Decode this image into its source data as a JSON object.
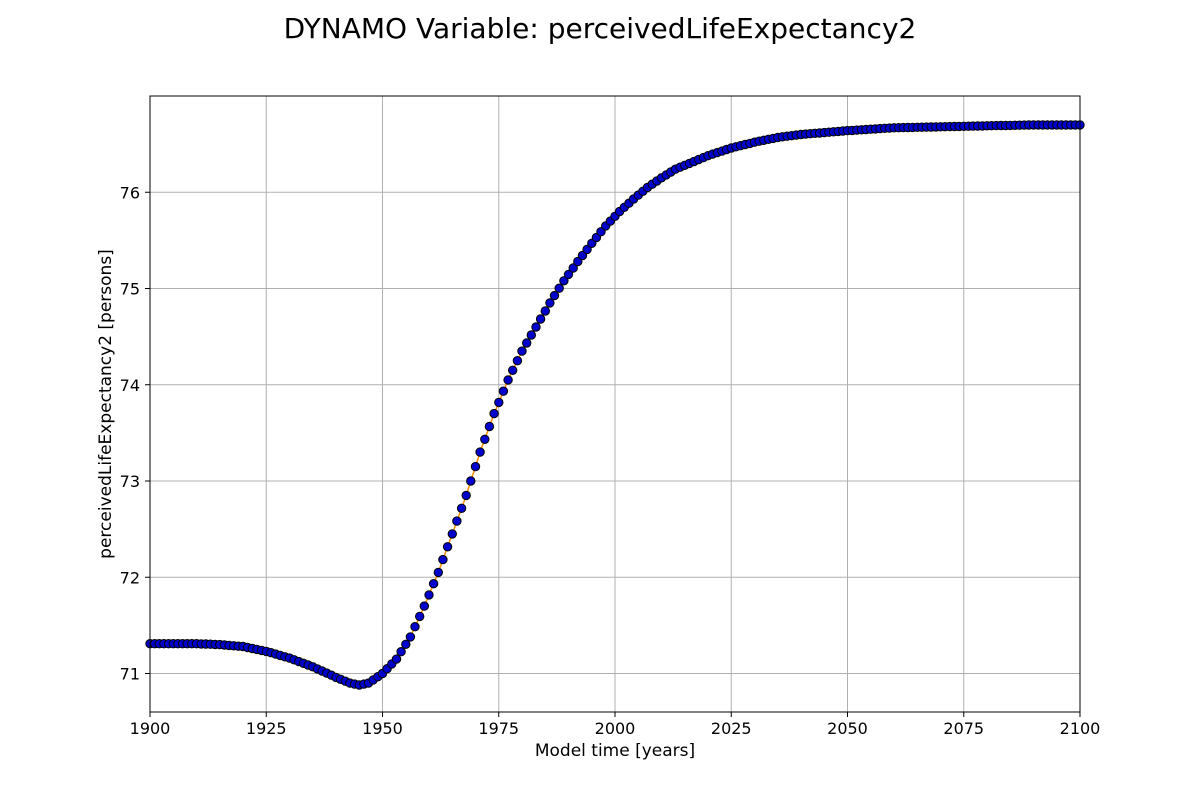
{
  "chart_data": {
    "type": "scatter",
    "title": "DYNAMO Variable: perceivedLifeExpectancy2",
    "xlabel": "Model time [years]",
    "ylabel": "perceivedLifeExpectancy2 [persons]",
    "xlim": [
      1900,
      2100
    ],
    "ylim": [
      70.6,
      77.0
    ],
    "x_ticks": [
      1900,
      1925,
      1950,
      1975,
      2000,
      2025,
      2050,
      2075,
      2100
    ],
    "y_ticks": [
      71,
      72,
      73,
      74,
      75,
      76
    ],
    "grid": true,
    "marker_color": "#0000cc",
    "marker_edge_color": "#000000",
    "line_color": "#ff8c00",
    "series": [
      {
        "x": [
          1900,
          1905,
          1910,
          1915,
          1920,
          1925,
          1930,
          1935,
          1940,
          1943,
          1945,
          1947,
          1950,
          1953,
          1956,
          1959,
          1962,
          1965,
          1968,
          1971,
          1974,
          1977,
          1980,
          1983,
          1986,
          1989,
          1992,
          1995,
          1998,
          2001,
          2004,
          2007,
          2010,
          2013,
          2016,
          2020,
          2025,
          2030,
          2035,
          2040,
          2045,
          2050,
          2060,
          2070,
          2080,
          2090,
          2100
        ],
        "y": [
          71.31,
          71.31,
          71.31,
          71.3,
          71.28,
          71.23,
          71.16,
          71.07,
          70.96,
          70.9,
          70.88,
          70.9,
          71.0,
          71.15,
          71.38,
          71.7,
          72.05,
          72.45,
          72.85,
          73.3,
          73.7,
          74.05,
          74.35,
          74.6,
          74.85,
          75.08,
          75.28,
          75.47,
          75.65,
          75.8,
          75.93,
          76.05,
          76.15,
          76.24,
          76.3,
          76.38,
          76.46,
          76.52,
          76.57,
          76.6,
          76.62,
          76.64,
          76.67,
          76.68,
          76.69,
          76.7,
          76.7
        ]
      }
    ]
  }
}
